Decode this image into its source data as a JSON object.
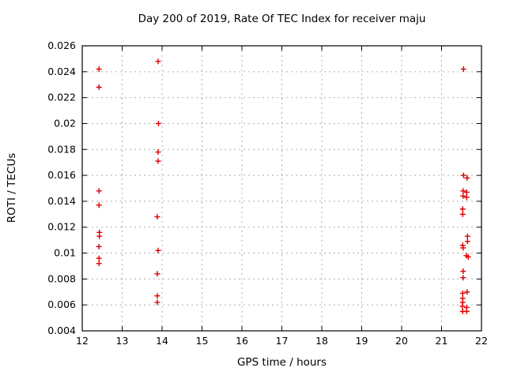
{
  "chart_data": {
    "type": "scatter",
    "title": "Day 200 of 2019, Rate Of TEC Index for receiver maju",
    "xlabel": "GPS time / hours",
    "ylabel": "ROTI / TECUs",
    "xlim": [
      12,
      22
    ],
    "ylim": [
      0.004,
      0.026
    ],
    "grid": true,
    "legend": "none",
    "xticks": [
      {
        "v": 12,
        "label": "12"
      },
      {
        "v": 13,
        "label": "13"
      },
      {
        "v": 14,
        "label": "14"
      },
      {
        "v": 15,
        "label": "15"
      },
      {
        "v": 16,
        "label": "16"
      },
      {
        "v": 17,
        "label": "17"
      },
      {
        "v": 18,
        "label": "18"
      },
      {
        "v": 19,
        "label": "19"
      },
      {
        "v": 20,
        "label": "20"
      },
      {
        "v": 21,
        "label": "21"
      },
      {
        "v": 22,
        "label": "22"
      }
    ],
    "yticks": [
      {
        "v": 0.004,
        "label": "0.004"
      },
      {
        "v": 0.006,
        "label": "0.006"
      },
      {
        "v": 0.008,
        "label": "0.008"
      },
      {
        "v": 0.01,
        "label": "0.01"
      },
      {
        "v": 0.012,
        "label": "0.012"
      },
      {
        "v": 0.014,
        "label": "0.014"
      },
      {
        "v": 0.016,
        "label": "0.016"
      },
      {
        "v": 0.018,
        "label": "0.018"
      },
      {
        "v": 0.02,
        "label": "0.02"
      },
      {
        "v": 0.022,
        "label": "0.022"
      },
      {
        "v": 0.024,
        "label": "0.024"
      },
      {
        "v": 0.026,
        "label": "0.026"
      }
    ],
    "marker": {
      "shape": "plus",
      "color": "#dd0000",
      "size": 7
    },
    "colors": {
      "border": "#000000",
      "grid": "#b0b0b0",
      "background": "#ffffff"
    },
    "series": [
      {
        "name": "maju",
        "points": [
          [
            12.42,
            0.0242
          ],
          [
            12.42,
            0.0228
          ],
          [
            12.42,
            0.0148
          ],
          [
            12.42,
            0.0137
          ],
          [
            12.43,
            0.0116
          ],
          [
            12.43,
            0.0113
          ],
          [
            12.42,
            0.0105
          ],
          [
            12.42,
            0.0096
          ],
          [
            12.42,
            0.0092
          ],
          [
            13.9,
            0.0248
          ],
          [
            13.91,
            0.02
          ],
          [
            13.9,
            0.0178
          ],
          [
            13.9,
            0.0171
          ],
          [
            13.88,
            0.0128
          ],
          [
            13.9,
            0.0102
          ],
          [
            13.88,
            0.0084
          ],
          [
            13.88,
            0.0067
          ],
          [
            13.88,
            0.0062
          ],
          [
            21.55,
            0.0242
          ],
          [
            21.55,
            0.016
          ],
          [
            21.64,
            0.0158
          ],
          [
            21.54,
            0.0148
          ],
          [
            21.63,
            0.0147
          ],
          [
            21.54,
            0.0144
          ],
          [
            21.63,
            0.0143
          ],
          [
            21.53,
            0.0134
          ],
          [
            21.53,
            0.013
          ],
          [
            21.65,
            0.0113
          ],
          [
            21.65,
            0.0109
          ],
          [
            21.53,
            0.0106
          ],
          [
            21.54,
            0.0104
          ],
          [
            21.62,
            0.0098
          ],
          [
            21.67,
            0.0097
          ],
          [
            21.54,
            0.0086
          ],
          [
            21.54,
            0.0081
          ],
          [
            21.64,
            0.007
          ],
          [
            21.53,
            0.0069
          ],
          [
            21.53,
            0.0065
          ],
          [
            21.53,
            0.0062
          ],
          [
            21.52,
            0.0059
          ],
          [
            21.63,
            0.0058
          ],
          [
            21.53,
            0.0055
          ],
          [
            21.63,
            0.0055
          ]
        ]
      }
    ]
  }
}
